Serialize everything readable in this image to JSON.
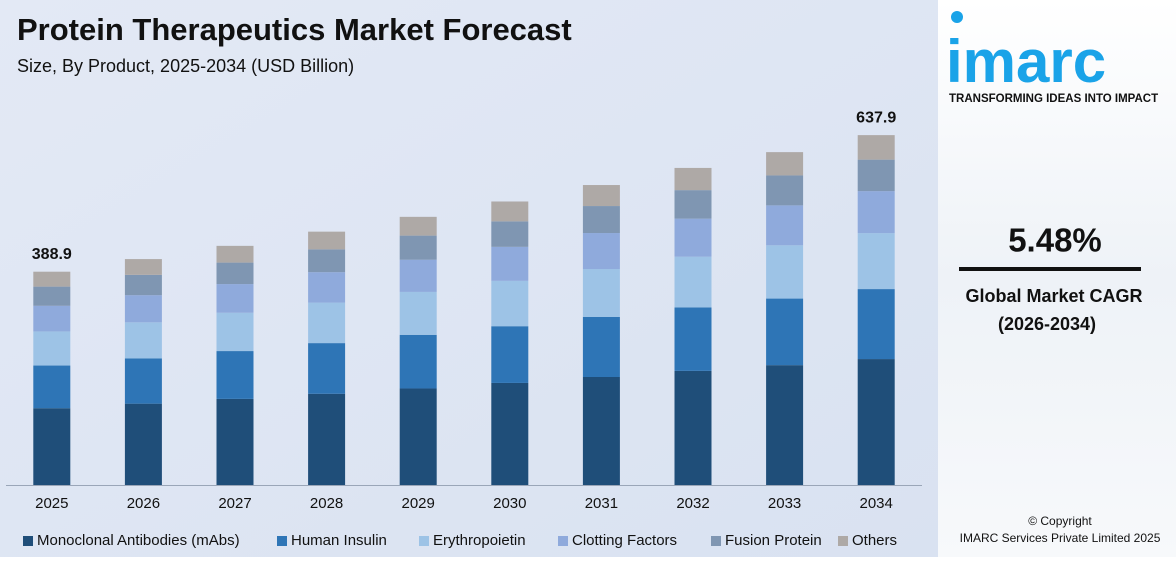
{
  "chart_data": {
    "type": "stacked-bar",
    "title": "Protein Therapeutics Market Forecast",
    "subtitle": "Size, By Product, 2025-2034 (USD Billion)",
    "categories": [
      "2025",
      "2026",
      "2027",
      "2028",
      "2029",
      "2030",
      "2031",
      "2032",
      "2033",
      "2034"
    ],
    "series": [
      {
        "name": "Monoclonal Antibodies (mAbs)",
        "color": "#1f4e79",
        "values": [
          140.0,
          148.3,
          157.0,
          166.3,
          176.0,
          186.1,
          196.9,
          208.1,
          218.5,
          229.6
        ]
      },
      {
        "name": "Human Insulin",
        "color": "#2e75b6",
        "values": [
          77.8,
          82.4,
          87.2,
          92.4,
          97.8,
          103.4,
          109.4,
          115.6,
          121.4,
          127.6
        ]
      },
      {
        "name": "Erythropoietin",
        "color": "#9dc3e6",
        "values": [
          62.2,
          65.9,
          69.8,
          73.9,
          78.2,
          82.7,
          87.5,
          92.5,
          97.1,
          102.1
        ]
      },
      {
        "name": "Clotting Factors",
        "color": "#8faadc",
        "values": [
          46.7,
          49.4,
          52.3,
          55.4,
          58.7,
          62.0,
          65.6,
          69.4,
          72.8,
          76.5
        ]
      },
      {
        "name": "Fusion Protein",
        "color": "#7f96b2",
        "values": [
          35.0,
          37.1,
          39.2,
          41.6,
          44.0,
          46.5,
          49.2,
          52.0,
          54.6,
          57.4
        ]
      },
      {
        "name": "Others",
        "color": "#aea9a6",
        "values": [
          27.2,
          28.8,
          30.5,
          32.3,
          34.2,
          36.2,
          38.3,
          40.5,
          42.5,
          44.7
        ]
      }
    ],
    "totals": [
      388.9,
      null,
      null,
      null,
      null,
      null,
      null,
      null,
      null,
      637.9
    ],
    "ylim": [
      0,
      660
    ]
  },
  "side_panel": {
    "logo": "imarc",
    "tagline": "TRANSFORMING IDEAS INTO IMPACT",
    "cagr": "5.48%",
    "cagr_label": "Global Market CAGR",
    "cagr_period": "(2026-2034)",
    "copyright": "© Copyright",
    "company": "IMARC Services Private Limited 2025"
  }
}
